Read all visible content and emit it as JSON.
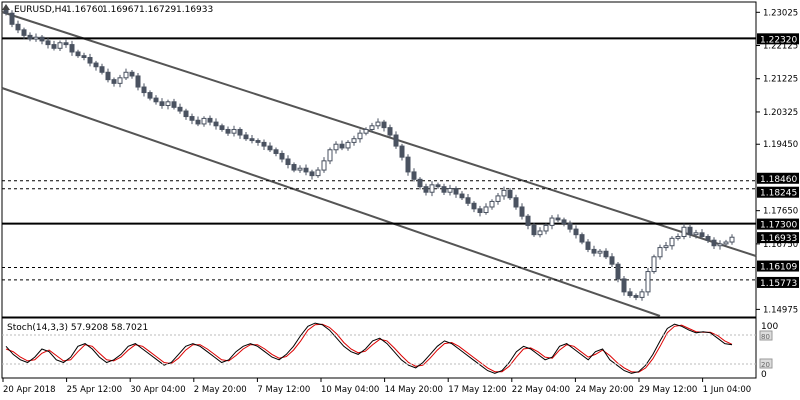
{
  "header": {
    "symbol_label": "EURUSD,H4",
    "open": "1.16760",
    "high": "1.16967",
    "low": "1.16729",
    "close": "1.16933"
  },
  "price_axis": {
    "ticks": [
      "1.23025",
      "1.22125",
      "1.21225",
      "1.20325",
      "1.19450",
      "1.17650",
      "1.16750",
      "1.14975"
    ]
  },
  "levels": [
    {
      "label": "1.22320",
      "style": "solid"
    },
    {
      "label": "1.18460",
      "style": "dashed"
    },
    {
      "label": "1.18245",
      "style": "dashed"
    },
    {
      "label": "1.17300",
      "style": "solid"
    },
    {
      "label": "1.16109",
      "style": "dashed"
    },
    {
      "label": "1.15773",
      "style": "dashed"
    }
  ],
  "current_price": "1.16933",
  "time_axis": {
    "labels": [
      "20 Apr 2018",
      "25 Apr 12:00",
      "30 Apr 04:00",
      "2 May 20:00",
      "7 May 12:00",
      "10 May 04:00",
      "14 May 20:00",
      "17 May 12:00",
      "22 May 04:00",
      "24 May 20:00",
      "29 May 12:00",
      "1 Jun 04:00"
    ]
  },
  "stochastic": {
    "label": "Stoch(14,3,3) 57.9208 58.7021",
    "levels": [
      "100",
      "80",
      "20",
      "0"
    ]
  },
  "colors": {
    "background": "#ffffff",
    "candle": "#4a5260",
    "channel": "#555555",
    "level_line": "#000000",
    "axis_label_bg": "#000000",
    "axis_label_fg": "#ffffff",
    "stoch_main": "#000000",
    "stoch_signal": "#dd0000"
  },
  "chart_data": {
    "type": "candlestick",
    "title": "EURUSD,H4",
    "ylim": [
      1.1485,
      1.2325
    ],
    "close_series": [
      1.23,
      1.227,
      1.2255,
      1.224,
      1.223,
      1.2235,
      1.2225,
      1.2215,
      1.2205,
      1.222,
      1.2215,
      1.2195,
      1.2185,
      1.218,
      1.2165,
      1.2155,
      1.214,
      1.212,
      1.211,
      1.2125,
      1.214,
      1.213,
      1.21,
      1.2085,
      1.207,
      1.206,
      1.205,
      1.206,
      1.2045,
      1.2035,
      1.202,
      1.201,
      1.2,
      1.2015,
      1.2005,
      1.1995,
      1.1985,
      1.1975,
      1.1985,
      1.197,
      1.196,
      1.1955,
      1.195,
      1.194,
      1.193,
      1.192,
      1.1905,
      1.189,
      1.1875,
      1.188,
      1.187,
      1.186,
      1.1875,
      1.19,
      1.193,
      1.1945,
      1.1935,
      1.195,
      1.196,
      1.1975,
      1.1985,
      1.1995,
      1.2005,
      1.199,
      1.197,
      1.194,
      1.191,
      1.187,
      1.185,
      1.183,
      1.1815,
      1.1835,
      1.183,
      1.1815,
      1.1825,
      1.181,
      1.18,
      1.1785,
      1.177,
      1.176,
      1.1775,
      1.179,
      1.1805,
      1.182,
      1.18,
      1.1775,
      1.175,
      1.1725,
      1.17,
      1.171,
      1.1725,
      1.1745,
      1.174,
      1.173,
      1.1715,
      1.17,
      1.168,
      1.166,
      1.165,
      1.1655,
      1.164,
      1.162,
      1.158,
      1.1545,
      1.1535,
      1.153,
      1.1545,
      1.16,
      1.164,
      1.1665,
      1.167,
      1.169,
      1.1695,
      1.172,
      1.17,
      1.1705,
      1.1695,
      1.1685,
      1.167,
      1.1675,
      1.168,
      1.1693
    ],
    "horizontal_levels": [
      1.2232,
      1.1846,
      1.18245,
      1.173,
      1.16109,
      1.15773
    ],
    "stoch_ylim": [
      0,
      100
    ],
    "stoch_main": [
      55,
      40,
      30,
      25,
      35,
      50,
      45,
      30,
      25,
      35,
      55,
      60,
      50,
      35,
      25,
      30,
      40,
      55,
      60,
      50,
      40,
      30,
      20,
      25,
      40,
      55,
      60,
      55,
      45,
      35,
      25,
      30,
      45,
      55,
      60,
      55,
      45,
      35,
      30,
      40,
      55,
      75,
      92,
      98,
      95,
      85,
      70,
      55,
      45,
      40,
      50,
      65,
      70,
      60,
      45,
      30,
      20,
      15,
      25,
      40,
      55,
      65,
      60,
      50,
      40,
      30,
      20,
      10,
      5,
      10,
      25,
      45,
      55,
      50,
      40,
      30,
      35,
      55,
      60,
      50,
      40,
      30,
      45,
      50,
      30,
      20,
      10,
      5,
      8,
      20,
      40,
      65,
      88,
      96,
      92,
      85,
      80,
      82,
      80,
      70,
      60,
      57.92
    ],
    "stoch_signal": [
      50,
      45,
      35,
      28,
      30,
      42,
      48,
      38,
      28,
      30,
      45,
      58,
      55,
      42,
      30,
      28,
      35,
      48,
      58,
      55,
      45,
      35,
      25,
      23,
      33,
      48,
      58,
      58,
      50,
      40,
      30,
      28,
      38,
      50,
      58,
      58,
      50,
      40,
      33,
      36,
      48,
      65,
      85,
      95,
      96,
      90,
      78,
      62,
      50,
      43,
      46,
      58,
      68,
      65,
      52,
      38,
      25,
      18,
      20,
      33,
      48,
      60,
      62,
      55,
      45,
      35,
      25,
      15,
      8,
      8,
      18,
      35,
      50,
      52,
      45,
      35,
      33,
      48,
      58,
      55,
      45,
      35,
      40,
      48,
      38,
      25,
      15,
      8,
      7,
      15,
      32,
      55,
      80,
      92,
      94,
      88,
      82,
      81,
      81,
      75,
      65,
      58.7
    ]
  }
}
